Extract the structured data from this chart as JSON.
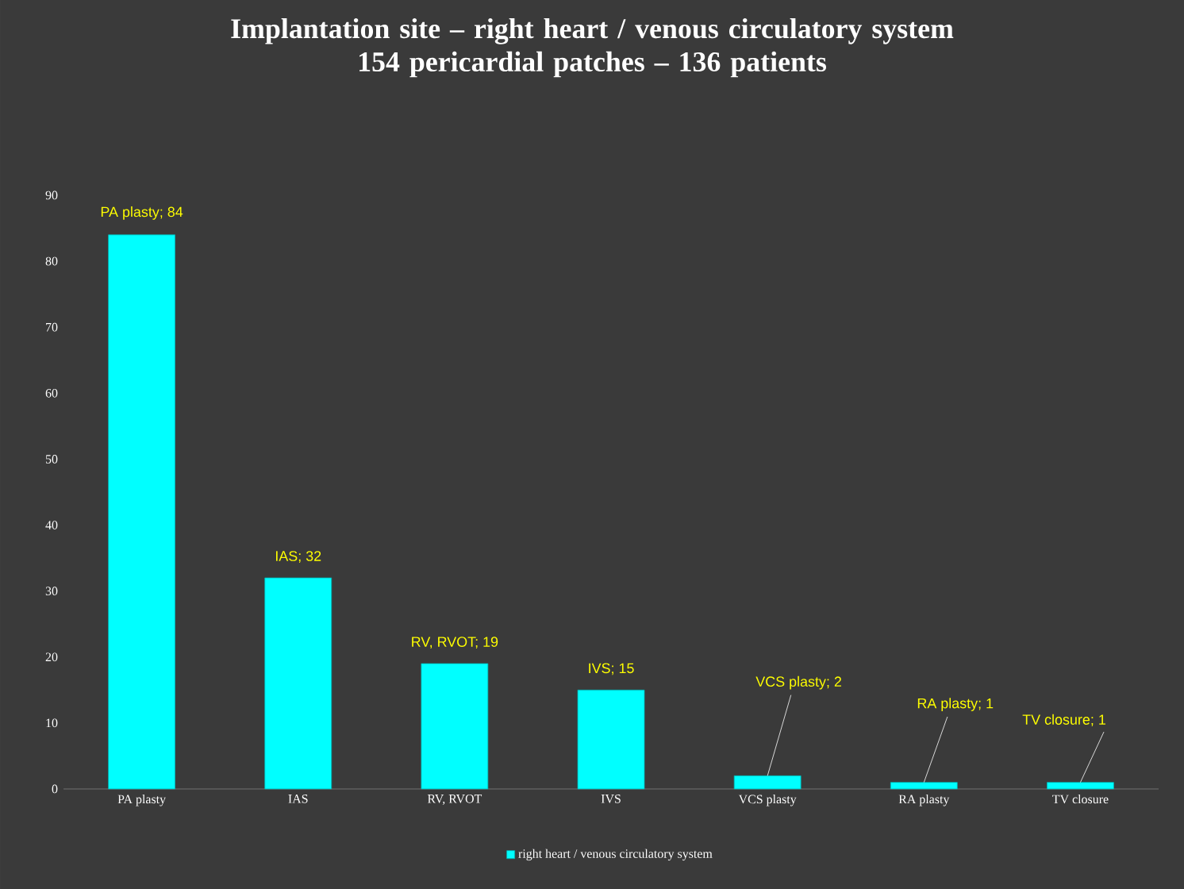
{
  "chart_data": {
    "type": "bar",
    "title": "Implantation site – right heart / venous circulatory system",
    "subtitle": "154 pericardial patches – 136 patients",
    "categories": [
      "PA plasty",
      "IAS",
      "RV, RVOT",
      "IVS",
      "VCS plasty",
      "RA plasty",
      "TV closure"
    ],
    "series": [
      {
        "name": "right heart / venous circulatory system",
        "color": "#00ffff",
        "values": [
          84,
          32,
          19,
          15,
          2,
          1,
          1
        ],
        "value_labels": [
          "PA plasty; 84",
          "IAS; 32",
          "RV, RVOT; 19",
          "IVS; 15",
          "VCS plasty; 2",
          "RA plasty; 1",
          "TV closure; 1"
        ]
      }
    ],
    "ylim": [
      0,
      90
    ],
    "yticks": [
      0,
      10,
      20,
      30,
      40,
      50,
      60,
      70,
      80,
      90
    ],
    "grid": false,
    "legend": "bottom"
  }
}
